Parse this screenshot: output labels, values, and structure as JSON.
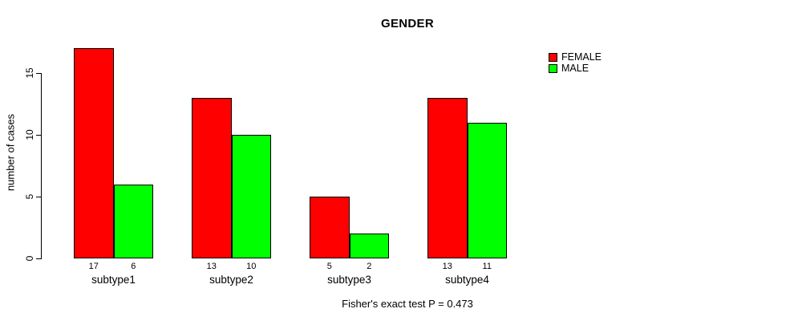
{
  "title": "GENDER",
  "y_axis": {
    "label": "number of cases",
    "tick_values": [
      0,
      5,
      10,
      15
    ]
  },
  "footer": "Fisher's exact test P = 0.473",
  "colors": {
    "female": "#FF0000",
    "male": "#00FF00",
    "axis": "#000000",
    "background": "#FFFFFF"
  },
  "chart_data": {
    "type": "bar",
    "title": "GENDER",
    "categories": [
      "subtype1",
      "subtype2",
      "subtype3",
      "subtype4"
    ],
    "series": [
      {
        "name": "FEMALE",
        "color": "#FF0000",
        "values": [
          17,
          13,
          5,
          13
        ]
      },
      {
        "name": "MALE",
        "color": "#00FF00",
        "values": [
          6,
          10,
          2,
          11
        ]
      }
    ],
    "xlabel": "",
    "ylabel": "number of cases",
    "ylim": [
      0,
      17
    ],
    "yticks": [
      0,
      5,
      10,
      15
    ],
    "grid": false,
    "legend_position": "top-right",
    "show_value_labels": true,
    "annotation": "Fisher's exact test P = 0.473"
  }
}
